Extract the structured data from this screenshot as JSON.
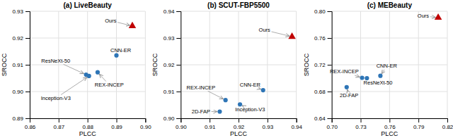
{
  "chart_data": [
    {
      "type": "scatter",
      "title": "(a) LiveBeauty",
      "x_label": "PLCC",
      "y_label": "SROCC",
      "xlim": [
        0.86,
        0.9
      ],
      "ylim": [
        0.89,
        0.93
      ],
      "xticks": [
        0.86,
        0.87,
        0.88,
        0.89,
        {
          "value": 0.9,
          "label": "0.90"
        }
      ],
      "yticks": [
        0.89,
        {
          "value": 0.9,
          "label": "0.90"
        },
        0.91,
        0.92,
        0.93
      ],
      "grid": true,
      "series": [
        {
          "color": "#2e75b6",
          "marker": "circle",
          "x": [
            0.8795,
            0.8805,
            0.8835,
            0.89
          ],
          "values": [
            0.9063,
            0.9058,
            0.9072,
            0.9135
          ],
          "labels": [
            "ResNeXt-50",
            "Inception-V3",
            "REX-INCEP",
            "CNN-ER"
          ],
          "label_positions": [
            [
              0.869,
              0.9115
            ],
            [
              0.869,
              0.8975
            ],
            [
              0.8875,
              0.9025
            ],
            [
              0.8915,
              0.9155
            ]
          ]
        },
        {
          "color": "#c00000",
          "marker": "triangle",
          "x": [
            0.8955
          ],
          "values": [
            0.9245
          ],
          "labels": [
            "Ours"
          ],
          "label_positions": [
            [
              0.888,
              0.9265
            ]
          ]
        }
      ]
    },
    {
      "type": "scatter",
      "title": "(b) SCUT-FBP5500",
      "x_label": "PLCC",
      "y_label": "SROCC",
      "xlim": [
        0.9,
        0.94
      ],
      "ylim": [
        0.9,
        0.94
      ],
      "xticks": [
        {
          "value": 0.9,
          "label": "0.90"
        },
        0.91,
        0.92,
        0.93,
        0.94
      ],
      "yticks": [
        {
          "value": 0.9,
          "label": "0.90"
        },
        0.91,
        0.92,
        0.93,
        0.94
      ],
      "grid": true,
      "series": [
        {
          "color": "#2e75b6",
          "marker": "circle",
          "x": [
            0.9135,
            0.9155,
            0.9205,
            0.9285
          ],
          "values": [
            0.9025,
            0.9068,
            0.9052,
            0.9105
          ],
          "labels": [
            "2D-FAP",
            "REX-INCEP",
            "Inception-V3",
            "CNN-ER"
          ],
          "label_positions": [
            [
              0.907,
              0.9025
            ],
            [
              0.907,
              0.9115
            ],
            [
              0.924,
              0.9032
            ],
            [
              0.924,
              0.9125
            ]
          ]
        },
        {
          "color": "#c00000",
          "marker": "triangle",
          "x": [
            0.9385
          ],
          "values": [
            0.9305
          ],
          "labels": [
            "Ours"
          ],
          "label_positions": [
            [
              0.929,
              0.933
            ]
          ]
        }
      ]
    },
    {
      "type": "scatter",
      "title": "(c) MEBeauty",
      "x_label": "PLCC",
      "y_label": "SROCC",
      "xlim": [
        0.7,
        0.82
      ],
      "ylim": [
        0.64,
        0.8
      ],
      "xticks": [
        {
          "value": 0.7,
          "label": "0.70"
        },
        0.73,
        0.76,
        0.79,
        0.82
      ],
      "yticks": [
        0.64,
        0.68,
        0.72,
        0.76,
        {
          "value": 0.8,
          "label": "0.80"
        }
      ],
      "grid": true,
      "series": [
        {
          "color": "#2e75b6",
          "marker": "circle",
          "x": [
            0.7155,
            0.7315,
            0.7365,
            0.7505
          ],
          "values": [
            0.6865,
            0.7005,
            0.7,
            0.7035
          ],
          "labels": [
            "2D-FAP",
            "REX-INCEP",
            "ResNeXt-50",
            "CNN-ER"
          ],
          "label_positions": [
            [
              0.718,
              0.674
            ],
            [
              0.713,
              0.7095
            ],
            [
              0.748,
              0.6935
            ],
            [
              0.757,
              0.718
            ]
          ]
        },
        {
          "color": "#c00000",
          "marker": "triangle",
          "x": [
            0.8105
          ],
          "values": [
            0.7905
          ],
          "labels": [
            "Ours"
          ],
          "label_positions": [
            [
              0.795,
              0.793
            ]
          ]
        }
      ]
    }
  ]
}
